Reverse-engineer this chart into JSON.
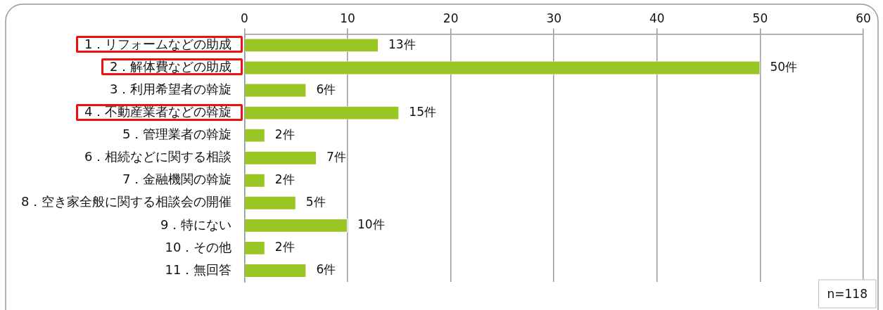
{
  "chart_data": {
    "type": "bar",
    "orientation": "horizontal",
    "categories": [
      "1．リフォームなどの助成",
      "2．解体費などの助成",
      "3．利用希望者の斡旋",
      "4．不動産業者などの斡旋",
      "5．管理業者の斡旋",
      "6．相続などに関する相談",
      "7．金融機関の斡旋",
      "8．空き家全般に関する相談会の開催",
      "9．特にない",
      "10．その他",
      "11．無回答"
    ],
    "values": [
      13,
      50,
      6,
      15,
      2,
      7,
      2,
      5,
      10,
      2,
      6
    ],
    "value_labels": [
      "13件",
      "50件",
      "6件",
      "15件",
      "2件",
      "7件",
      "2件",
      "5件",
      "10件",
      "2件",
      "6件"
    ],
    "color": "#99c625",
    "xlim": [
      0,
      60
    ],
    "xticks": [
      0,
      10,
      20,
      30,
      40,
      50,
      60
    ],
    "grid": "x",
    "legend": false,
    "annotations": [
      "n=118"
    ]
  }
}
